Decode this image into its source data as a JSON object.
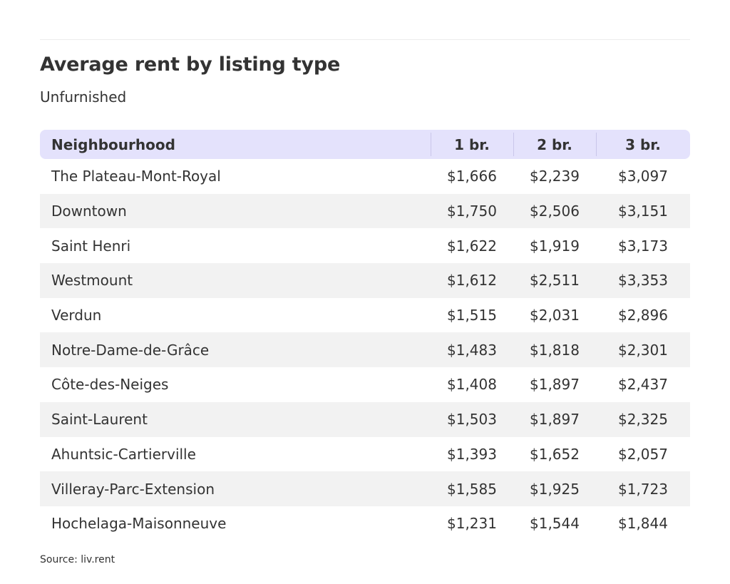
{
  "title": "Average rent by listing type",
  "subtitle": "Unfurnished",
  "source": "Source: liv.rent",
  "colors": {
    "header_background": "#e4e2fc",
    "stripe_background": "#f2f2f2",
    "text": "#333333"
  },
  "chart_data": {
    "type": "table",
    "title": "Average rent by listing type",
    "subtitle": "Unfurnished",
    "columns": [
      "Neighbourhood",
      "1 br.",
      "2 br.",
      "3 br."
    ],
    "rows": [
      [
        "The Plateau-Mont-Royal",
        "$1,666",
        "$2,239",
        "$3,097"
      ],
      [
        "Downtown",
        "$1,750",
        "$2,506",
        "$3,151"
      ],
      [
        "Saint Henri",
        "$1,622",
        "$1,919",
        "$3,173"
      ],
      [
        "Westmount",
        "$1,612",
        "$2,511",
        "$3,353"
      ],
      [
        "Verdun",
        "$1,515",
        "$2,031",
        "$2,896"
      ],
      [
        "Notre-Dame-de-Grâce",
        "$1,483",
        "$1,818",
        "$2,301"
      ],
      [
        "Côte-des-Neiges",
        "$1,408",
        "$1,897",
        "$2,437"
      ],
      [
        "Saint-Laurent",
        "$1,503",
        "$1,897",
        "$2,325"
      ],
      [
        "Ahuntsic-Cartierville",
        "$1,393",
        "$1,652",
        "$2,057"
      ],
      [
        "Villeray-Parc-Extension",
        "$1,585",
        "$1,925",
        "$1,723"
      ],
      [
        "Hochelaga-Maisonneuve",
        "$1,231",
        "$1,544",
        "$1,844"
      ]
    ]
  }
}
